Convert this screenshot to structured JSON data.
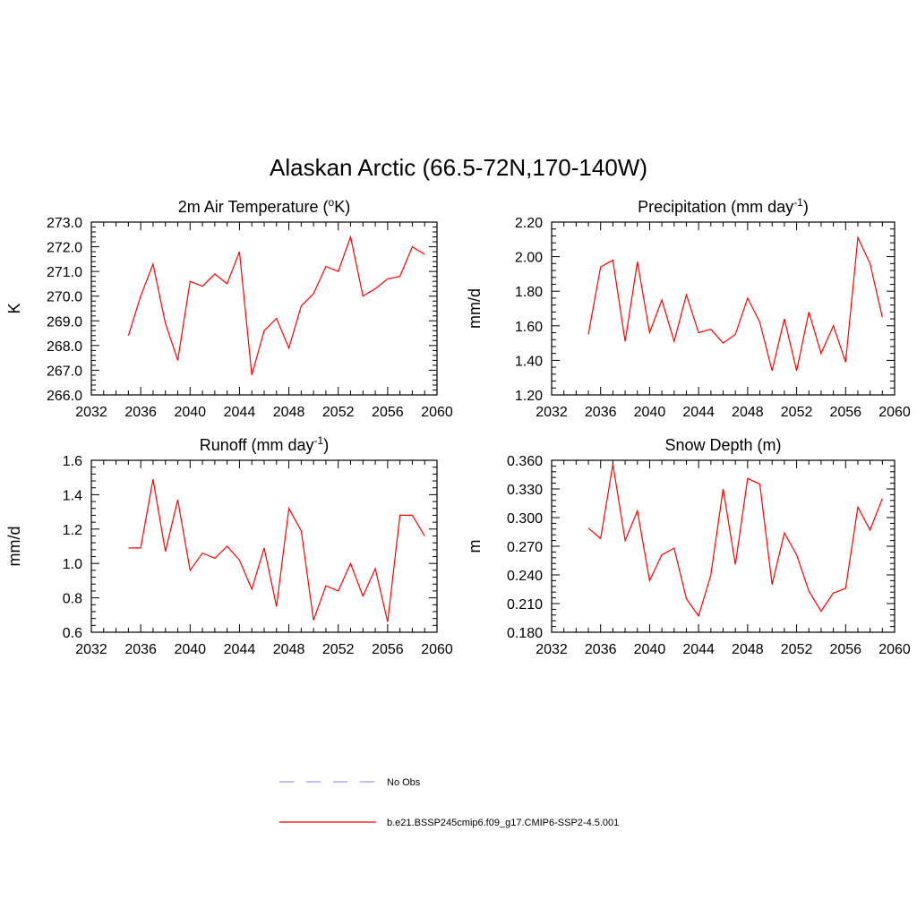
{
  "title": "Alaskan Arctic (66.5-72N,170-140W)",
  "chart_data": [
    {
      "type": "line",
      "title": "2m Air Temperature (",
      "title_sup": "o",
      "title_after": "K)",
      "ylabel": "K",
      "xlim": [
        2032,
        2060
      ],
      "ylim": [
        266.0,
        273.0
      ],
      "xticks": [
        "2032",
        "2036",
        "2040",
        "2044",
        "2048",
        "2052",
        "2056",
        "2060"
      ],
      "yticks": [
        "266.0",
        "267.0",
        "268.0",
        "269.0",
        "270.0",
        "271.0",
        "272.0",
        "273.0"
      ],
      "x": [
        2035,
        2036,
        2037,
        2038,
        2039,
        2040,
        2041,
        2042,
        2043,
        2044,
        2045,
        2046,
        2047,
        2048,
        2049,
        2050,
        2051,
        2052,
        2053,
        2054,
        2055,
        2056,
        2057,
        2058,
        2059
      ],
      "values": [
        268.4,
        270.0,
        271.3,
        268.9,
        267.4,
        270.6,
        270.4,
        270.9,
        270.5,
        271.8,
        266.8,
        268.6,
        269.1,
        267.9,
        269.6,
        270.1,
        271.2,
        271.0,
        272.4,
        270.0,
        270.3,
        270.7,
        270.8,
        272.0,
        271.7
      ],
      "color": "#ff0000"
    },
    {
      "type": "line",
      "title": "Precipitation (mm day",
      "title_sup": "-1",
      "title_after": ")",
      "ylabel": "mm/d",
      "xlim": [
        2032,
        2060
      ],
      "ylim": [
        1.2,
        2.2
      ],
      "xticks": [
        "2032",
        "2036",
        "2040",
        "2044",
        "2048",
        "2052",
        "2056",
        "2060"
      ],
      "yticks": [
        "1.20",
        "1.40",
        "1.60",
        "1.80",
        "2.00",
        "2.20"
      ],
      "x": [
        2035,
        2036,
        2037,
        2038,
        2039,
        2040,
        2041,
        2042,
        2043,
        2044,
        2045,
        2046,
        2047,
        2048,
        2049,
        2050,
        2051,
        2052,
        2053,
        2054,
        2055,
        2056,
        2057,
        2058,
        2059
      ],
      "values": [
        1.55,
        1.94,
        1.98,
        1.51,
        1.97,
        1.56,
        1.75,
        1.51,
        1.78,
        1.56,
        1.58,
        1.5,
        1.55,
        1.76,
        1.62,
        1.34,
        1.64,
        1.34,
        1.68,
        1.44,
        1.6,
        1.39,
        2.11,
        1.96,
        1.65
      ],
      "color": "#ff0000"
    },
    {
      "type": "line",
      "title": "Runoff (mm day",
      "title_sup": "-1",
      "title_after": ")",
      "ylabel": "mm/d",
      "xlim": [
        2032,
        2060
      ],
      "ylim": [
        0.6,
        1.6
      ],
      "xticks": [
        "2032",
        "2036",
        "2040",
        "2044",
        "2048",
        "2052",
        "2056",
        "2060"
      ],
      "yticks": [
        "0.6",
        "0.8",
        "1.0",
        "1.2",
        "1.4",
        "1.6"
      ],
      "x": [
        2035,
        2036,
        2037,
        2038,
        2039,
        2040,
        2041,
        2042,
        2043,
        2044,
        2045,
        2046,
        2047,
        2048,
        2049,
        2050,
        2051,
        2052,
        2053,
        2054,
        2055,
        2056,
        2057,
        2058,
        2059
      ],
      "values": [
        1.09,
        1.09,
        1.49,
        1.07,
        1.37,
        0.96,
        1.06,
        1.03,
        1.1,
        1.02,
        0.85,
        1.09,
        0.75,
        1.32,
        1.19,
        0.67,
        0.87,
        0.84,
        1.0,
        0.81,
        0.97,
        0.66,
        1.28,
        1.28,
        1.16
      ],
      "color": "#ff0000"
    },
    {
      "type": "line",
      "title": "Snow Depth (m)",
      "title_sup": "",
      "title_after": "",
      "ylabel": "m",
      "xlim": [
        2032,
        2060
      ],
      "ylim": [
        0.18,
        0.36
      ],
      "xticks": [
        "2032",
        "2036",
        "2040",
        "2044",
        "2048",
        "2052",
        "2056",
        "2060"
      ],
      "yticks": [
        "0.180",
        "0.210",
        "0.240",
        "0.270",
        "0.300",
        "0.330",
        "0.360"
      ],
      "x": [
        2035,
        2036,
        2037,
        2038,
        2039,
        2040,
        2041,
        2042,
        2043,
        2044,
        2045,
        2046,
        2047,
        2048,
        2049,
        2050,
        2051,
        2052,
        2053,
        2054,
        2055,
        2056,
        2057,
        2058,
        2059
      ],
      "values": [
        0.289,
        0.278,
        0.356,
        0.276,
        0.307,
        0.234,
        0.261,
        0.268,
        0.215,
        0.197,
        0.24,
        0.33,
        0.251,
        0.341,
        0.335,
        0.23,
        0.284,
        0.261,
        0.223,
        0.202,
        0.221,
        0.226,
        0.311,
        0.287,
        0.32
      ],
      "color": "#ff0000"
    }
  ],
  "legend": {
    "placement": "bottom-center",
    "items": [
      {
        "label": "No Obs",
        "style": "dashed",
        "color": "#9999ff"
      },
      {
        "label": "b.e21.BSSP245cmip6.f09_g17.CMIP6-SSP2-4.5.001",
        "style": "solid",
        "color": "#ff0000"
      }
    ]
  }
}
